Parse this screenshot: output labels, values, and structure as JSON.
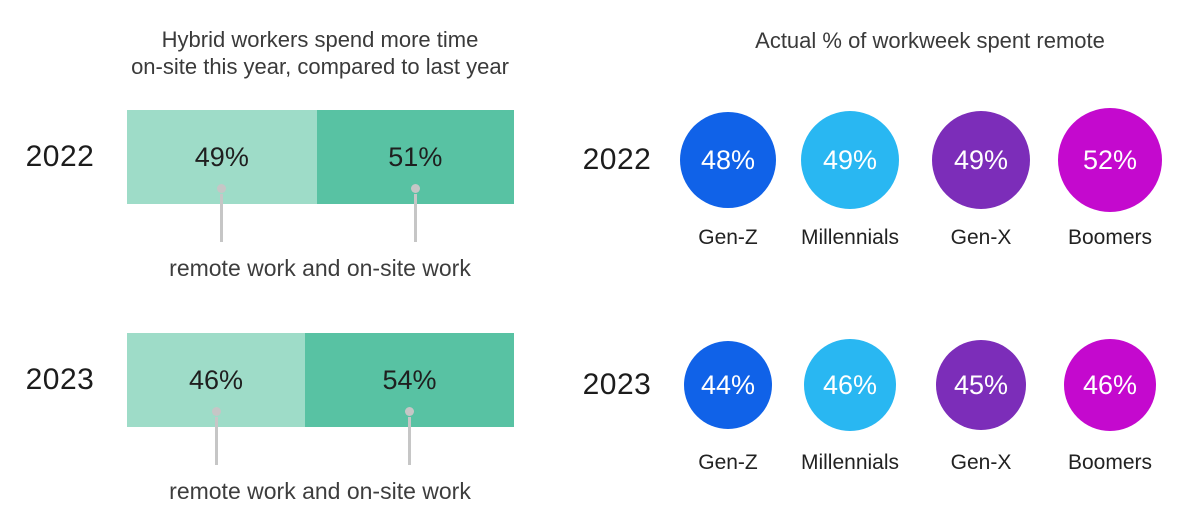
{
  "colors": {
    "remote_segment": "#9EDCC8",
    "onsite_segment": "#58C2A3",
    "genz_blue": "#1062E8",
    "millennials_cyan": "#29B7F2",
    "genx_purple": "#7C2DB9",
    "boomers_magenta": "#C409CE",
    "callout_gray": "#C6C6C6",
    "bubble_text": "#FFFFFF",
    "dark_text": "#1F1F1F"
  },
  "left_chart": {
    "title_line1": "Hybrid workers spend more time",
    "title_line2": "on-site this year, compared to last year",
    "rows": [
      {
        "year": "2022",
        "caption": "remote work and on-site work",
        "segments": [
          {
            "name": "remote work",
            "label": "49%",
            "value": 49,
            "color": "#9EDCC8"
          },
          {
            "name": "on-site work",
            "label": "51%",
            "value": 51,
            "color": "#58C2A3"
          }
        ]
      },
      {
        "year": "2023",
        "caption": "remote work and on-site work",
        "segments": [
          {
            "name": "remote work",
            "label": "46%",
            "value": 46,
            "color": "#9EDCC8"
          },
          {
            "name": "on-site work",
            "label": "54%",
            "value": 54,
            "color": "#58C2A3"
          }
        ]
      }
    ]
  },
  "right_chart": {
    "title": "Actual % of workweek spent remote",
    "rows": [
      {
        "year": "2022",
        "bubbles": [
          {
            "category": "Gen-Z",
            "label": "48%",
            "value": 48,
            "color": "#1062E8"
          },
          {
            "category": "Millennials",
            "label": "49%",
            "value": 49,
            "color": "#29B7F2"
          },
          {
            "category": "Gen-X",
            "label": "49%",
            "value": 49,
            "color": "#7C2DB9"
          },
          {
            "category": "Boomers",
            "label": "52%",
            "value": 52,
            "color": "#C409CE"
          }
        ]
      },
      {
        "year": "2023",
        "bubbles": [
          {
            "category": "Gen-Z",
            "label": "44%",
            "value": 44,
            "color": "#1062E8"
          },
          {
            "category": "Millennials",
            "label": "46%",
            "value": 46,
            "color": "#29B7F2"
          },
          {
            "category": "Gen-X",
            "label": "45%",
            "value": 45,
            "color": "#7C2DB9"
          },
          {
            "category": "Boomers",
            "label": "46%",
            "value": 46,
            "color": "#C409CE"
          }
        ]
      }
    ]
  },
  "chart_data": [
    {
      "type": "bar",
      "subtype": "stacked-horizontal",
      "title": "Hybrid workers spend more time on-site this year, compared to last year",
      "categories": [
        "2022",
        "2023"
      ],
      "series": [
        {
          "name": "remote work",
          "values": [
            49,
            46
          ],
          "color": "#9EDCC8"
        },
        {
          "name": "on-site work",
          "values": [
            51,
            54
          ],
          "color": "#58C2A3"
        }
      ],
      "value_unit": "%",
      "annotation": "remote work and on-site work",
      "xlim": [
        0,
        100
      ],
      "grid": false,
      "legend_position": "below-as-annotation"
    },
    {
      "type": "scatter",
      "subtype": "proportional-bubbles",
      "title": "Actual % of workweek spent remote",
      "categories": [
        "Gen-Z",
        "Millennials",
        "Gen-X",
        "Boomers"
      ],
      "series": [
        {
          "name": "2022",
          "values": [
            48,
            49,
            49,
            52
          ]
        },
        {
          "name": "2023",
          "values": [
            44,
            46,
            45,
            46
          ]
        }
      ],
      "value_unit": "%",
      "category_colors": [
        "#1062E8",
        "#29B7F2",
        "#7C2DB9",
        "#C409CE"
      ],
      "grid": false,
      "legend_position": "none"
    }
  ]
}
